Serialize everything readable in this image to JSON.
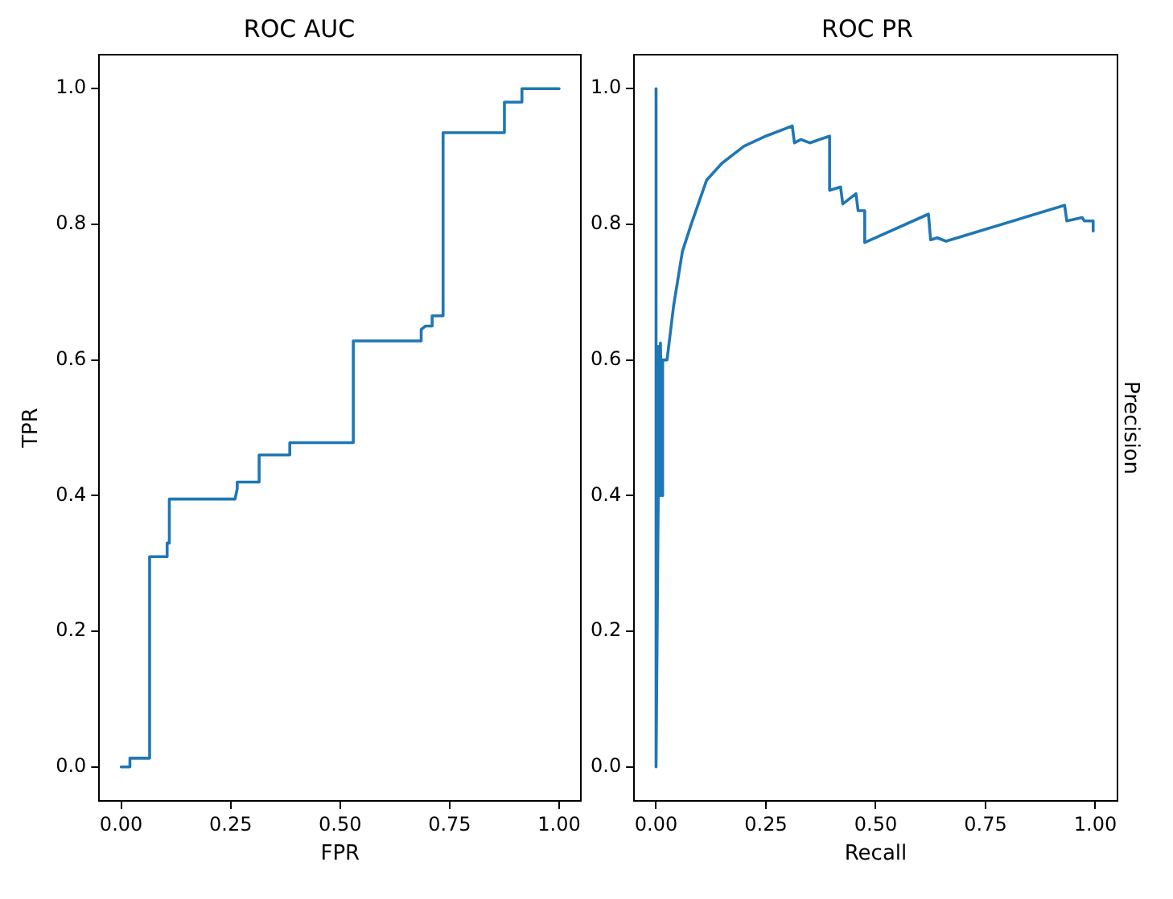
{
  "chart_data": [
    {
      "type": "line",
      "title": "ROC AUC",
      "xlabel": "FPR",
      "ylabel": "TPR",
      "xlim": [
        -0.05,
        1.05
      ],
      "ylim": [
        -0.05,
        1.05
      ],
      "xticks": [
        {
          "value": 0,
          "label": "0.00"
        },
        {
          "value": 0.25,
          "label": "0.25"
        },
        {
          "value": 0.5,
          "label": "0.50"
        },
        {
          "value": 0.75,
          "label": "0.75"
        },
        {
          "value": 1,
          "label": "1.00"
        }
      ],
      "yticks": [
        {
          "value": 0,
          "label": "0.0"
        },
        {
          "value": 0.2,
          "label": "0.2"
        },
        {
          "value": 0.4,
          "label": "0.4"
        },
        {
          "value": 0.6,
          "label": "0.6"
        },
        {
          "value": 0.8,
          "label": "0.8"
        },
        {
          "value": 1,
          "label": "1.0"
        }
      ],
      "grid": false,
      "legend": false,
      "marker": "none",
      "line_style": "solid",
      "series": [
        {
          "color": "#1f77b4",
          "x": [
            0,
            0.02,
            0.02,
            0.065,
            0.065,
            0.105,
            0.105,
            0.11,
            0.11,
            0.26,
            0.265,
            0.265,
            0.315,
            0.315,
            0.385,
            0.385,
            0.53,
            0.53,
            0.685,
            0.685,
            0.695,
            0.71,
            0.71,
            0.735,
            0.735,
            0.875,
            0.875,
            0.915,
            0.915,
            1.0
          ],
          "values": [
            0,
            0,
            0.013,
            0.013,
            0.31,
            0.31,
            0.33,
            0.33,
            0.395,
            0.395,
            0.41,
            0.42,
            0.42,
            0.46,
            0.46,
            0.478,
            0.478,
            0.628,
            0.628,
            0.645,
            0.65,
            0.65,
            0.665,
            0.665,
            0.935,
            0.935,
            0.98,
            0.98,
            1.0,
            1.0
          ]
        }
      ]
    },
    {
      "type": "line",
      "title": "ROC PR",
      "xlabel": "Recall",
      "ylabel": "Precision",
      "xlim": [
        -0.05,
        1.05
      ],
      "ylim": [
        -0.05,
        1.05
      ],
      "xticks": [
        {
          "value": 0,
          "label": "0.00"
        },
        {
          "value": 0.25,
          "label": "0.25"
        },
        {
          "value": 0.5,
          "label": "0.50"
        },
        {
          "value": 0.75,
          "label": "0.75"
        },
        {
          "value": 1,
          "label": "1.00"
        }
      ],
      "yticks": [
        {
          "value": 0,
          "label": "0.0"
        },
        {
          "value": 0.2,
          "label": "0.2"
        },
        {
          "value": 0.4,
          "label": "0.4"
        },
        {
          "value": 0.6,
          "label": "0.6"
        },
        {
          "value": 0.8,
          "label": "0.8"
        },
        {
          "value": 1,
          "label": "1.0"
        }
      ],
      "grid": false,
      "legend": false,
      "marker": "none",
      "line_style": "solid",
      "series": [
        {
          "color": "#1f77b4",
          "x": [
            0,
            0,
            0.005,
            0.005,
            0.01,
            0.01,
            0.015,
            0.015,
            0.025,
            0.04,
            0.06,
            0.08,
            0.115,
            0.15,
            0.2,
            0.25,
            0.31,
            0.315,
            0.33,
            0.35,
            0.395,
            0.395,
            0.42,
            0.425,
            0.455,
            0.46,
            0.475,
            0.475,
            0.62,
            0.625,
            0.64,
            0.66,
            0.93,
            0.935,
            0.97,
            0.975,
            0.995,
            0.995
          ],
          "values": [
            1.0,
            0,
            0.4,
            0.62,
            0.4,
            0.625,
            0.4,
            0.6,
            0.6,
            0.68,
            0.76,
            0.8,
            0.865,
            0.89,
            0.915,
            0.93,
            0.945,
            0.92,
            0.925,
            0.92,
            0.93,
            0.85,
            0.855,
            0.83,
            0.845,
            0.82,
            0.82,
            0.773,
            0.815,
            0.777,
            0.78,
            0.775,
            0.828,
            0.805,
            0.81,
            0.805,
            0.805,
            0.79
          ]
        }
      ]
    }
  ]
}
